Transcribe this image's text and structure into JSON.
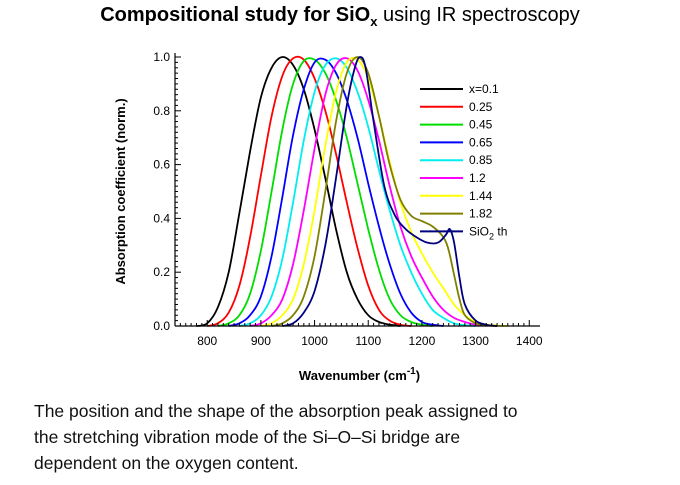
{
  "title": {
    "bold_part": "Compositional study for SiO",
    "subscript": "x",
    "rest": " using IR spectroscopy"
  },
  "caption": {
    "line1": "The position and the shape of the absorption peak assigned to",
    "line2": "the stretching vibration mode of the Si–O–Si bridge are",
    "line3": "dependent on the oxygen content."
  },
  "chart_data": {
    "type": "line",
    "title": "",
    "xlabel": "Wavenumber  (cm",
    "xlabel_sup": "-1",
    "xlabel_end": ")",
    "ylabel": "Absorption coefficient  (norm.)",
    "xlim": [
      740,
      1420
    ],
    "ylim": [
      0,
      1.0
    ],
    "xticks": [
      800,
      900,
      1000,
      1100,
      1200,
      1300,
      1400
    ],
    "yticks": [
      0.0,
      0.2,
      0.4,
      0.6,
      0.8,
      1.0
    ],
    "ytick_labels": [
      "0.0",
      "0.2",
      "0.4",
      "0.6",
      "0.8",
      "1.0"
    ],
    "legend_position": "top-right",
    "series": [
      {
        "name": "x=0.1",
        "color": "#000000",
        "x": [
          800,
          820,
          840,
          860,
          880,
          900,
          920,
          940,
          960,
          980,
          1000,
          1020,
          1040,
          1060,
          1080,
          1100,
          1120,
          1140
        ],
        "y": [
          0.01,
          0.07,
          0.2,
          0.42,
          0.65,
          0.85,
          0.96,
          1.0,
          0.97,
          0.88,
          0.73,
          0.55,
          0.36,
          0.2,
          0.1,
          0.04,
          0.015,
          0.005
        ]
      },
      {
        "name": "0.25",
        "color": "#ff0000",
        "x": [
          820,
          840,
          860,
          880,
          900,
          920,
          940,
          960,
          980,
          1000,
          1020,
          1040,
          1060,
          1080,
          1100,
          1120,
          1140,
          1160
        ],
        "y": [
          0.01,
          0.05,
          0.15,
          0.33,
          0.56,
          0.78,
          0.93,
          0.995,
          0.99,
          0.92,
          0.8,
          0.64,
          0.46,
          0.29,
          0.15,
          0.06,
          0.02,
          0.005
        ]
      },
      {
        "name": "0.45",
        "color": "#00dd00",
        "x": [
          840,
          860,
          880,
          900,
          920,
          940,
          960,
          980,
          1000,
          1020,
          1040,
          1060,
          1080,
          1100,
          1120,
          1140,
          1160,
          1180,
          1200
        ],
        "y": [
          0.01,
          0.04,
          0.12,
          0.28,
          0.5,
          0.73,
          0.9,
          0.985,
          0.99,
          0.94,
          0.84,
          0.7,
          0.53,
          0.36,
          0.21,
          0.1,
          0.04,
          0.015,
          0.005
        ]
      },
      {
        "name": "0.65",
        "color": "#0000ff",
        "x": [
          860,
          880,
          900,
          920,
          940,
          960,
          980,
          1000,
          1020,
          1040,
          1060,
          1080,
          1100,
          1120,
          1140,
          1160,
          1180,
          1200,
          1220
        ],
        "y": [
          0.01,
          0.04,
          0.11,
          0.26,
          0.48,
          0.71,
          0.88,
          0.98,
          0.99,
          0.94,
          0.84,
          0.7,
          0.53,
          0.37,
          0.23,
          0.12,
          0.05,
          0.015,
          0.005
        ]
      },
      {
        "name": "0.85",
        "color": "#00eeee",
        "x": [
          880,
          900,
          920,
          940,
          960,
          980,
          1000,
          1020,
          1040,
          1060,
          1080,
          1100,
          1120,
          1140,
          1160,
          1180,
          1200,
          1220,
          1240,
          1260,
          1280
        ],
        "y": [
          0.01,
          0.04,
          0.11,
          0.25,
          0.46,
          0.69,
          0.87,
          0.97,
          0.995,
          0.96,
          0.87,
          0.74,
          0.58,
          0.43,
          0.3,
          0.2,
          0.12,
          0.06,
          0.03,
          0.01,
          0.003
        ]
      },
      {
        "name": "1.2",
        "color": "#ff00ff",
        "x": [
          900,
          920,
          940,
          960,
          980,
          1000,
          1020,
          1040,
          1060,
          1080,
          1100,
          1120,
          1140,
          1160,
          1180,
          1200,
          1220,
          1240,
          1260,
          1280,
          1300,
          1320
        ],
        "y": [
          0.01,
          0.04,
          0.1,
          0.23,
          0.43,
          0.66,
          0.86,
          0.97,
          0.995,
          0.95,
          0.84,
          0.69,
          0.52,
          0.37,
          0.26,
          0.18,
          0.11,
          0.06,
          0.03,
          0.015,
          0.005,
          0.002
        ]
      },
      {
        "name": "1.44",
        "color": "#ffff00",
        "x": [
          920,
          940,
          960,
          980,
          1000,
          1020,
          1040,
          1060,
          1080,
          1100,
          1120,
          1140,
          1160,
          1180,
          1200,
          1220,
          1240,
          1260,
          1280,
          1300,
          1320,
          1340
        ],
        "y": [
          0.01,
          0.04,
          0.1,
          0.23,
          0.43,
          0.67,
          0.87,
          0.98,
          0.99,
          0.92,
          0.78,
          0.61,
          0.46,
          0.35,
          0.27,
          0.2,
          0.14,
          0.08,
          0.04,
          0.015,
          0.005,
          0.002
        ]
      },
      {
        "name": "1.82",
        "color": "#808000",
        "x": [
          940,
          960,
          980,
          1000,
          1020,
          1040,
          1060,
          1080,
          1100,
          1120,
          1140,
          1160,
          1180,
          1200,
          1220,
          1240,
          1250,
          1260,
          1270,
          1280,
          1300,
          1320
        ],
        "y": [
          0.01,
          0.04,
          0.11,
          0.26,
          0.5,
          0.76,
          0.94,
          1.0,
          0.94,
          0.78,
          0.6,
          0.47,
          0.41,
          0.39,
          0.37,
          0.33,
          0.28,
          0.19,
          0.1,
          0.04,
          0.01,
          0.003
        ]
      },
      {
        "name": "SiO",
        "name_sub": "2",
        "name_end": " th",
        "color": "#000080",
        "x": [
          960,
          980,
          1000,
          1020,
          1040,
          1060,
          1075,
          1085,
          1095,
          1110,
          1130,
          1150,
          1170,
          1190,
          1210,
          1230,
          1245,
          1252,
          1260,
          1270,
          1280,
          1300,
          1320
        ],
        "y": [
          0.01,
          0.05,
          0.13,
          0.3,
          0.55,
          0.82,
          0.96,
          1.0,
          0.96,
          0.76,
          0.52,
          0.41,
          0.36,
          0.33,
          0.31,
          0.31,
          0.34,
          0.36,
          0.31,
          0.18,
          0.08,
          0.02,
          0.005
        ]
      }
    ]
  }
}
